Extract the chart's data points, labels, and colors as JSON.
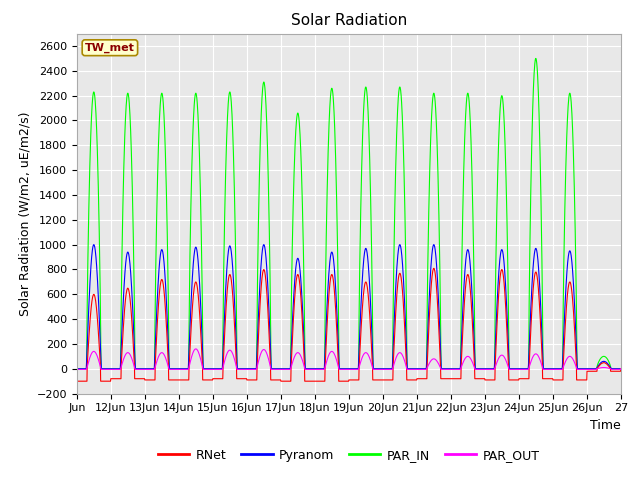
{
  "title": "Solar Radiation",
  "ylabel": "Solar Radiation (W/m2, uE/m2/s)",
  "xlabel": "Time",
  "ylim": [
    -200,
    2700
  ],
  "yticks": [
    -200,
    0,
    200,
    400,
    600,
    800,
    1000,
    1200,
    1400,
    1600,
    1800,
    2000,
    2200,
    2400,
    2600
  ],
  "station_label": "TW_met",
  "legend_entries": [
    "RNet",
    "Pyranom",
    "PAR_IN",
    "PAR_OUT"
  ],
  "line_colors": {
    "RNet": "#ff0000",
    "Pyranom": "#0000ff",
    "PAR_IN": "#00ff00",
    "PAR_OUT": "#ff00ff"
  },
  "x_tick_labels": [
    "Jun",
    "12Jun",
    "13Jun",
    "14Jun",
    "15Jun",
    "16Jun",
    "17Jun",
    "18Jun",
    "19Jun",
    "20Jun",
    "21Jun",
    "22Jun",
    "23Jun",
    "24Jun",
    "25Jun",
    "26Jun",
    "27"
  ],
  "n_days": 16,
  "plot_bg_color": "#e8e8e8",
  "fig_bg_color": "#ffffff",
  "grid_color": "#ffffff",
  "title_fontsize": 11,
  "axis_fontsize": 9,
  "tick_fontsize": 8,
  "legend_fontsize": 9
}
